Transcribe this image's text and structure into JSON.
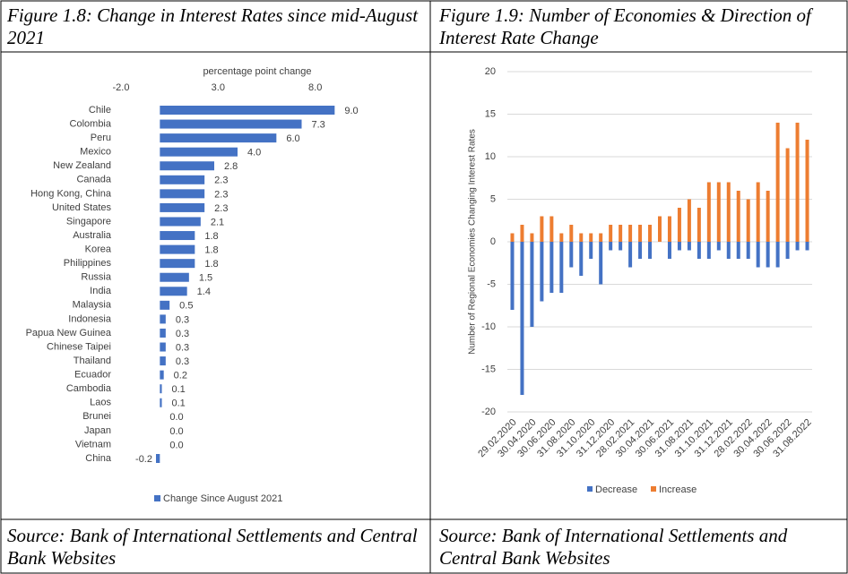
{
  "figures": [
    {
      "title": "Figure 1.8: Change in Interest Rates since mid-August 2021",
      "source": "Source: Bank of International Settlements and Central Bank Websites"
    },
    {
      "title": "Figure 1.9: Number of Economies & Direction of Interest Rate Change",
      "source": "Source: Bank of International Settlements and Central Bank Websites"
    }
  ],
  "chart_data": [
    {
      "type": "bar",
      "orientation": "horizontal",
      "x_label": "percentage point change",
      "categories": [
        "Chile",
        "Colombia",
        "Peru",
        "Mexico",
        "New Zealand",
        "Canada",
        "Hong Kong, China",
        "United States",
        "Singapore",
        "Australia",
        "Korea",
        "Philippines",
        "Russia",
        "India",
        "Malaysia",
        "Indonesia",
        "Papua New Guinea",
        "Chinese Taipei",
        "Thailand",
        "Ecuador",
        "Cambodia",
        "Laos",
        "Brunei",
        "Japan",
        "Vietnam",
        "China"
      ],
      "series": [
        {
          "name": "Change Since August 2021",
          "color": "#4472c4",
          "values": [
            9.0,
            7.3,
            6.0,
            4.0,
            2.8,
            2.3,
            2.3,
            2.3,
            2.1,
            1.8,
            1.8,
            1.8,
            1.5,
            1.4,
            0.5,
            0.3,
            0.3,
            0.3,
            0.3,
            0.2,
            0.1,
            0.1,
            0.0,
            0.0,
            0.0,
            -0.2
          ],
          "value_labels": [
            "9.0",
            "7.3",
            "6.0",
            "4.0",
            "2.8",
            "2.3",
            "2.3",
            "2.3",
            "2.1",
            "1.8",
            "1.8",
            "1.8",
            "1.5",
            "1.4",
            "0.5",
            "0.3",
            "0.3",
            "0.3",
            "0.3",
            "0.2",
            "0.1",
            "0.1",
            "0.0",
            "0.0",
            "0.0",
            "-0.2"
          ]
        }
      ],
      "xlim": [
        -2,
        10
      ],
      "xticks": [
        {
          "value": -2,
          "label": "-2.0"
        },
        {
          "value": 3,
          "label": "3.0"
        },
        {
          "value": 8,
          "label": "8.0"
        }
      ],
      "legend": "bottom"
    },
    {
      "type": "bar",
      "y_label": "Number of Regional Economies Changing Interest Rates",
      "categories": [
        "29.02.2020",
        null,
        "30.04.2020",
        null,
        "30.06.2020",
        null,
        "31.08.2020",
        null,
        "31.10.2020",
        null,
        "31.12.2020",
        null,
        "28.02.2021",
        null,
        "30.04.2021",
        null,
        "30.06.2021",
        null,
        "31.08.2021",
        null,
        "31.10.2021",
        null,
        "31.12.2021",
        null,
        "28.02.2022",
        null,
        "30.04.2022",
        null,
        "30.06.2022",
        null,
        "31.08.2022"
      ],
      "series": [
        {
          "name": "Decrease",
          "color": "#4472c4",
          "values": [
            -8,
            -18,
            -10,
            -7,
            -6,
            -6,
            -3,
            -4,
            -2,
            -5,
            -1,
            -1,
            -3,
            -2,
            -2,
            0,
            -2,
            -1,
            -1,
            -2,
            -2,
            -1,
            -2,
            -2,
            -2,
            -3,
            -3,
            -3,
            -2,
            -1,
            -1
          ]
        },
        {
          "name": "Increase",
          "color": "#ed7d31",
          "values": [
            1,
            2,
            1,
            3,
            3,
            1,
            2,
            1,
            1,
            1,
            2,
            2,
            2,
            2,
            2,
            3,
            3,
            4,
            5,
            4,
            7,
            7,
            7,
            6,
            5,
            7,
            6,
            14,
            11,
            14,
            12
          ]
        }
      ],
      "ylim": [
        -20,
        20
      ],
      "yticks": [
        -20,
        -15,
        -10,
        -5,
        0,
        5,
        10,
        15,
        20
      ],
      "grid": true,
      "legend": "bottom"
    }
  ]
}
